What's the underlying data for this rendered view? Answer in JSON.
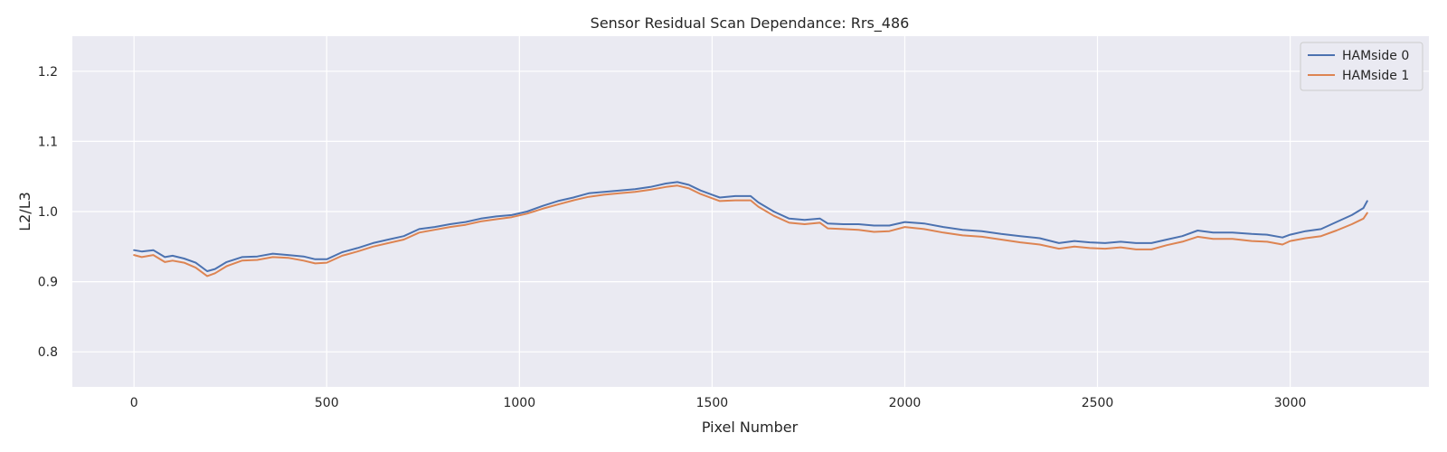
{
  "chart_data": {
    "type": "line",
    "title": "Sensor Residual Scan Dependance: Rrs_486",
    "xlabel": "Pixel Number",
    "ylabel": "L2/L3",
    "xlim": [
      -160,
      3360
    ],
    "ylim": [
      0.75,
      1.25
    ],
    "xticks": [
      0,
      500,
      1000,
      1500,
      2000,
      2500,
      3000
    ],
    "yticks": [
      0.8,
      0.9,
      1.0,
      1.1,
      1.2
    ],
    "xtick_labels": [
      "0",
      "500",
      "1000",
      "1500",
      "2000",
      "2500",
      "3000"
    ],
    "ytick_labels": [
      "0.8",
      "0.9",
      "1.0",
      "1.1",
      "1.2"
    ],
    "grid": true,
    "legend_position": "top-right",
    "colors": {
      "background": "#eaeaf2",
      "grid": "#ffffff",
      "text": "#262626"
    },
    "series": [
      {
        "name": "HAMside 0",
        "color": "#4c72b0",
        "x": [
          0,
          20,
          50,
          80,
          100,
          130,
          160,
          190,
          210,
          240,
          280,
          320,
          360,
          400,
          440,
          470,
          500,
          540,
          580,
          620,
          660,
          700,
          740,
          780,
          820,
          860,
          900,
          940,
          980,
          1020,
          1060,
          1100,
          1140,
          1180,
          1220,
          1260,
          1300,
          1340,
          1380,
          1410,
          1440,
          1470,
          1500,
          1520,
          1560,
          1600,
          1620,
          1660,
          1700,
          1740,
          1780,
          1800,
          1840,
          1880,
          1920,
          1960,
          2000,
          2050,
          2100,
          2150,
          2200,
          2250,
          2300,
          2350,
          2400,
          2440,
          2480,
          2520,
          2560,
          2600,
          2640,
          2680,
          2720,
          2760,
          2800,
          2850,
          2900,
          2940,
          2980,
          3000,
          3040,
          3080,
          3120,
          3160,
          3190,
          3200
        ],
        "values": [
          0.945,
          0.943,
          0.945,
          0.935,
          0.937,
          0.933,
          0.927,
          0.915,
          0.918,
          0.928,
          0.935,
          0.936,
          0.94,
          0.938,
          0.936,
          0.932,
          0.932,
          0.942,
          0.948,
          0.955,
          0.96,
          0.965,
          0.975,
          0.978,
          0.982,
          0.985,
          0.99,
          0.993,
          0.995,
          1.0,
          1.008,
          1.015,
          1.02,
          1.026,
          1.028,
          1.03,
          1.032,
          1.035,
          1.04,
          1.042,
          1.038,
          1.03,
          1.024,
          1.02,
          1.022,
          1.022,
          1.013,
          1.0,
          0.99,
          0.988,
          0.99,
          0.983,
          0.982,
          0.982,
          0.98,
          0.98,
          0.985,
          0.983,
          0.978,
          0.974,
          0.972,
          0.968,
          0.965,
          0.962,
          0.955,
          0.958,
          0.956,
          0.955,
          0.957,
          0.955,
          0.955,
          0.96,
          0.965,
          0.973,
          0.97,
          0.97,
          0.968,
          0.967,
          0.963,
          0.967,
          0.972,
          0.975,
          0.985,
          0.995,
          1.005,
          1.015
        ]
      },
      {
        "name": "HAMside 1",
        "color": "#dd8452",
        "x": [
          0,
          20,
          50,
          80,
          100,
          130,
          160,
          190,
          210,
          240,
          280,
          320,
          360,
          400,
          440,
          470,
          500,
          540,
          580,
          620,
          660,
          700,
          740,
          780,
          820,
          860,
          900,
          940,
          980,
          1020,
          1060,
          1100,
          1140,
          1180,
          1220,
          1260,
          1300,
          1340,
          1380,
          1410,
          1440,
          1470,
          1500,
          1520,
          1560,
          1600,
          1620,
          1660,
          1700,
          1740,
          1780,
          1800,
          1840,
          1880,
          1920,
          1960,
          2000,
          2050,
          2100,
          2150,
          2200,
          2250,
          2300,
          2350,
          2400,
          2440,
          2480,
          2520,
          2560,
          2600,
          2640,
          2680,
          2720,
          2760,
          2800,
          2850,
          2900,
          2940,
          2980,
          3000,
          3040,
          3080,
          3120,
          3160,
          3190,
          3200
        ],
        "values": [
          0.938,
          0.935,
          0.938,
          0.928,
          0.93,
          0.927,
          0.92,
          0.908,
          0.912,
          0.922,
          0.93,
          0.931,
          0.935,
          0.934,
          0.93,
          0.926,
          0.927,
          0.937,
          0.943,
          0.95,
          0.955,
          0.96,
          0.97,
          0.974,
          0.978,
          0.981,
          0.986,
          0.989,
          0.992,
          0.997,
          1.004,
          1.01,
          1.016,
          1.021,
          1.024,
          1.026,
          1.028,
          1.031,
          1.035,
          1.037,
          1.033,
          1.025,
          1.019,
          1.015,
          1.016,
          1.016,
          1.007,
          0.994,
          0.984,
          0.982,
          0.984,
          0.976,
          0.975,
          0.974,
          0.971,
          0.972,
          0.978,
          0.975,
          0.97,
          0.966,
          0.964,
          0.96,
          0.956,
          0.953,
          0.947,
          0.95,
          0.948,
          0.947,
          0.949,
          0.946,
          0.946,
          0.952,
          0.957,
          0.964,
          0.961,
          0.961,
          0.958,
          0.957,
          0.953,
          0.958,
          0.962,
          0.965,
          0.973,
          0.982,
          0.99,
          0.998
        ]
      }
    ]
  }
}
